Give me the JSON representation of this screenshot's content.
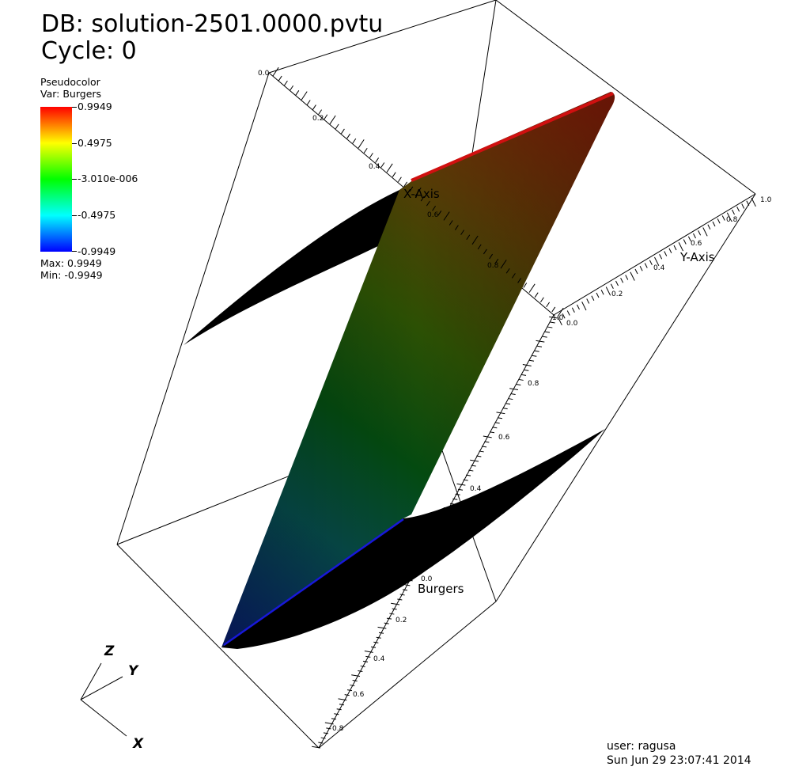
{
  "header": {
    "db_line": "DB: solution-2501.0000.pvtu",
    "cycle_line": "Cycle: 0"
  },
  "legend": {
    "plot_type": "Pseudocolor",
    "variable": "Var: Burgers",
    "tick_labels": [
      "0.9949",
      "0.4975",
      "-3.010e-006",
      "-0.4975",
      "-0.9949"
    ],
    "max_text": "Max:  0.9949",
    "min_text": "Min: -0.9949",
    "colormap": [
      "#ff0000",
      "#ffff00",
      "#00ff00",
      "#00ffff",
      "#0000ff"
    ]
  },
  "axes": {
    "x_title": "X-Axis",
    "y_title": "Y-Axis",
    "z_title": "Burgers",
    "x_ticks": [
      "0.0",
      "0.2",
      "0.4",
      "0.6",
      "0.8",
      "1.0"
    ],
    "y_ticks": [
      "0.0",
      "0.2",
      "0.4",
      "0.6",
      "0.8",
      "1.0"
    ],
    "z_ticks": [
      "0.8",
      "0.6",
      "0.4",
      "0.2",
      "0.0"
    ],
    "z_neg_ticks": [
      "0.2",
      "0.4",
      "0.6",
      "0.8"
    ]
  },
  "triad": {
    "x": "X",
    "y": "Y",
    "z": "Z"
  },
  "footer": {
    "user": "user: ragusa",
    "date": "Sun Jun 29 23:07:41 2014"
  }
}
